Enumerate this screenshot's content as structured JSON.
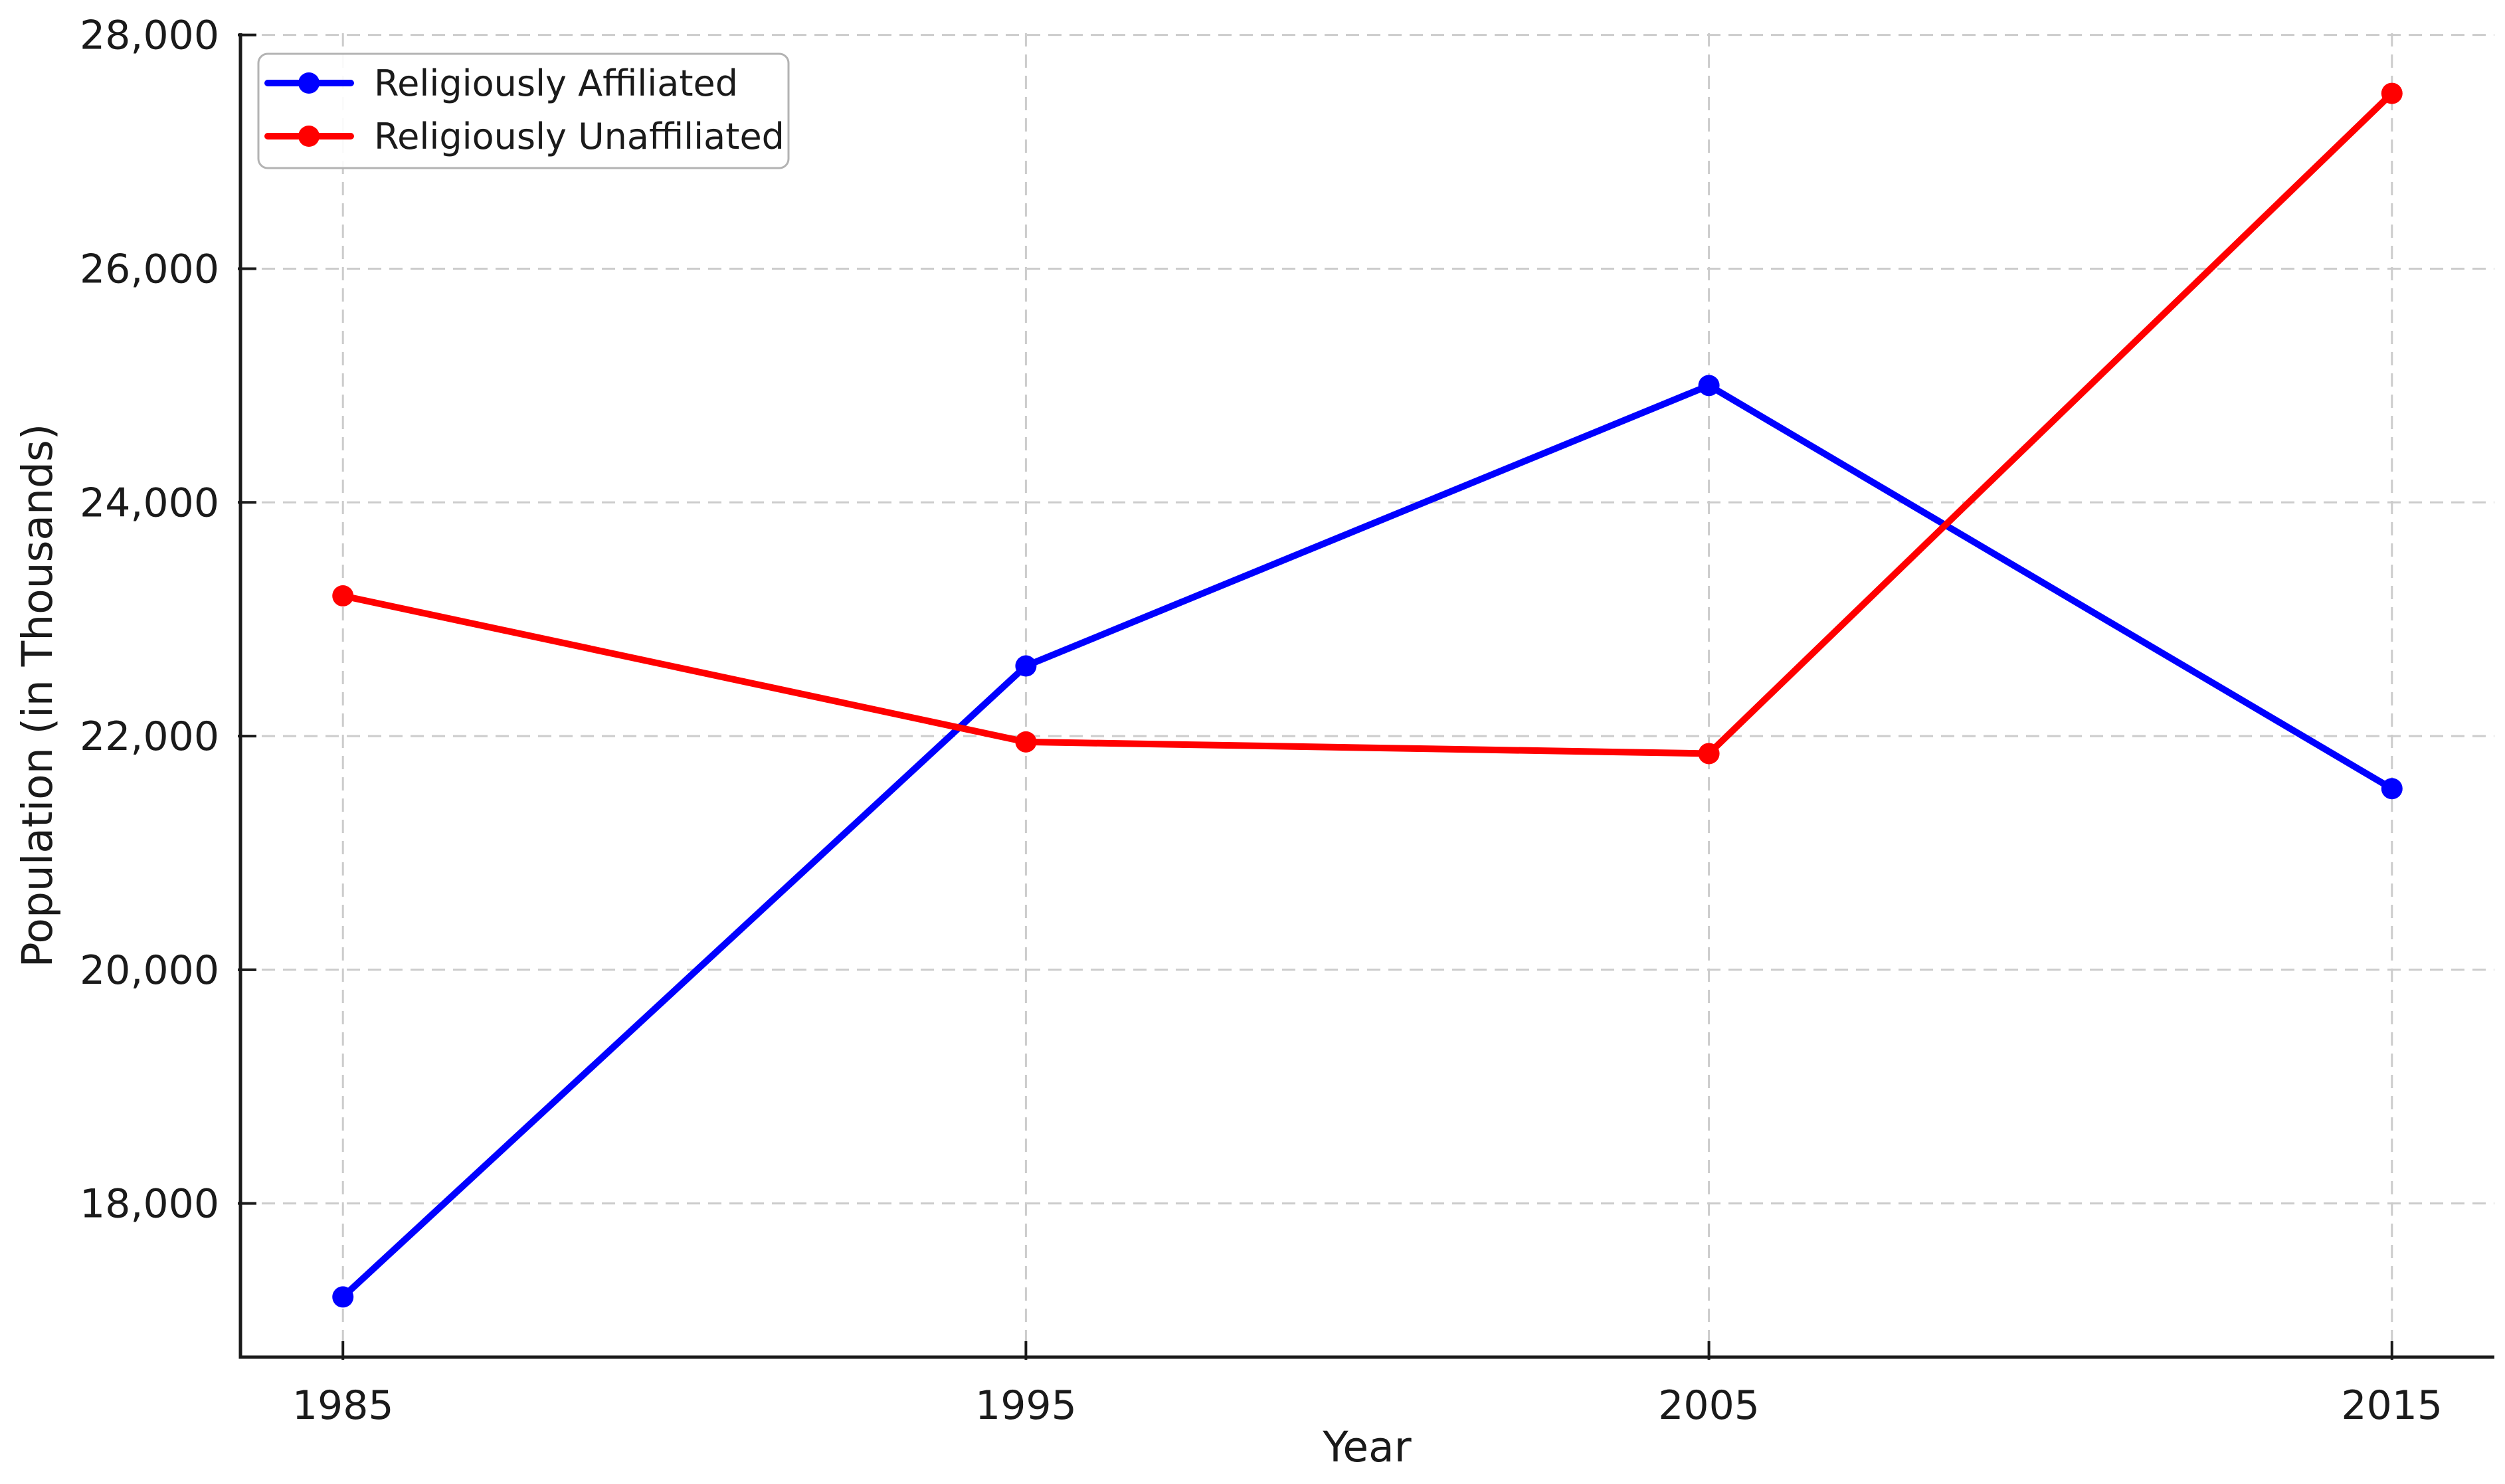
{
  "chart_data": {
    "type": "line",
    "title": "",
    "xlabel": "Year",
    "ylabel": "Population (in Thousands)",
    "x": [
      1985,
      1995,
      2005,
      2015
    ],
    "xtick_labels": [
      "1985",
      "1995",
      "2005",
      "2015"
    ],
    "yticks": [
      18000,
      20000,
      22000,
      24000,
      26000,
      28000
    ],
    "ytick_labels": [
      "18,000",
      "20,000",
      "22,000",
      "24,000",
      "26,000",
      "28,000"
    ],
    "xlim": [
      1983.5,
      2016.5
    ],
    "ylim": [
      16685,
      28015
    ],
    "grid": "dashed-both-axes",
    "grid_color": "#cccccc",
    "axis_color": "#1a1a1a",
    "background_color": "#ffffff",
    "legend_position": "upper-left",
    "series": [
      {
        "name": "Religiously Affiliated",
        "color": "#0000ff",
        "marker": "circle",
        "values": [
          17200,
          22600,
          25000,
          21550
        ]
      },
      {
        "name": "Religiously Unaffiliated",
        "color": "#ff0000",
        "marker": "circle",
        "values": [
          23200,
          21950,
          21850,
          27500
        ]
      }
    ]
  }
}
